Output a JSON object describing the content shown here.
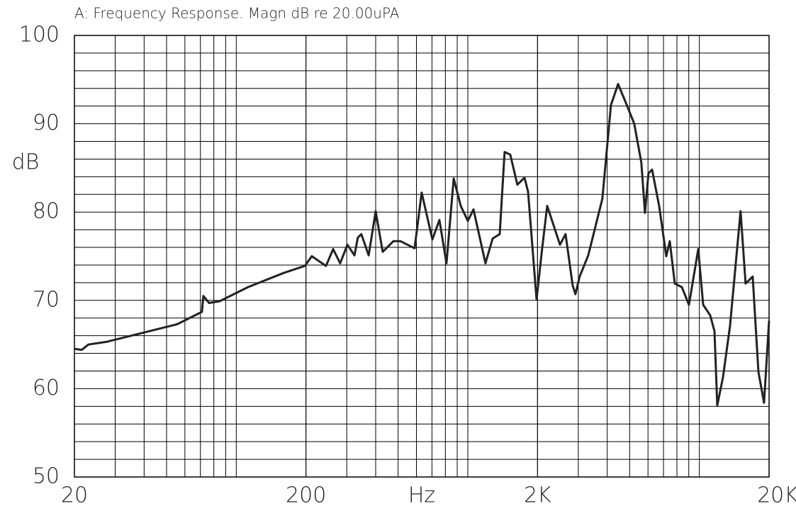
{
  "chart_data": {
    "type": "line",
    "title": "A: Frequency Response. Magn dB re 20.00uPA",
    "x_label": "Hz",
    "y_label": "dB",
    "x_scale": "log",
    "grid": true,
    "minor_grid": true,
    "xlim": [
      20,
      20000
    ],
    "ylim": [
      50,
      100
    ],
    "xticks": [
      20,
      200,
      {
        "value": 2000,
        "label": "2K"
      },
      {
        "value": 20000,
        "label": "20K"
      }
    ],
    "yticks": [
      50,
      60,
      70,
      80,
      90,
      100
    ],
    "series": [
      {
        "color": "#222222",
        "x": [
          20,
          21.5,
          23,
          27.4,
          39.1,
          55.6,
          71.1,
          72.1,
          76.3,
          84.8,
          112.4,
          160,
          197.6,
          212,
          244,
          262,
          281,
          302,
          324,
          335,
          347,
          373,
          400,
          429,
          477,
          512,
          589,
          632,
          703,
          754,
          809,
          869,
          932,
          1000,
          1058,
          1192,
          1280,
          1373,
          1442,
          1525,
          1637,
          1757,
          1820,
          1981,
          2095,
          2203,
          2500,
          2643,
          2836,
          2916,
          3042,
          3311,
          3811,
          4150,
          4456,
          4880,
          5234,
          5617,
          5823,
          6029,
          6252,
          6701,
          7196,
          7452,
          7832,
          8400,
          9018,
          9888,
          10380,
          11140,
          11620,
          11950,
          12650,
          13560,
          15070,
          15840,
          16990,
          17990,
          19020,
          20000
        ],
        "values": [
          64.5,
          64.4,
          65.0,
          65.3,
          66.3,
          67.3,
          68.7,
          70.5,
          69.7,
          69.9,
          71.5,
          73.1,
          73.9,
          75.0,
          73.9,
          75.8,
          74.2,
          76.3,
          75.1,
          77.1,
          77.5,
          75.1,
          80.1,
          75.5,
          76.7,
          76.7,
          75.9,
          82.2,
          76.9,
          79.1,
          74.2,
          83.8,
          80.7,
          79.0,
          80.3,
          74.2,
          77.0,
          77.5,
          86.8,
          86.5,
          83.1,
          83.9,
          82.3,
          70.1,
          75.9,
          80.7,
          76.3,
          77.5,
          71.7,
          70.7,
          72.7,
          75.1,
          81.5,
          92.1,
          94.5,
          92.0,
          90.0,
          85.6,
          79.9,
          84.4,
          84.8,
          80.7,
          75.0,
          76.7,
          71.9,
          71.5,
          69.5,
          75.8,
          69.5,
          68.3,
          66.5,
          58.1,
          61.3,
          67.1,
          80.1,
          71.9,
          72.7,
          61.9,
          58.4,
          67.7
        ]
      }
    ]
  }
}
